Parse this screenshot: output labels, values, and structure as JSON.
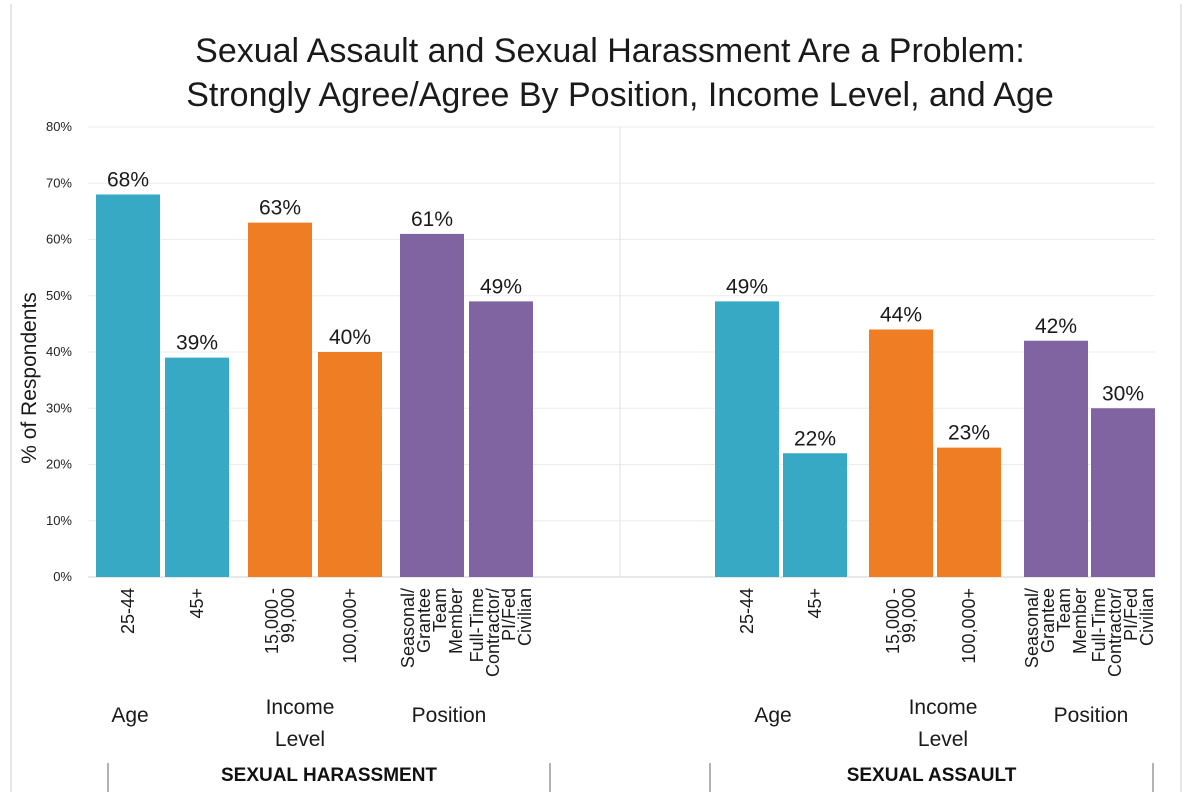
{
  "chart_data": {
    "type": "bar",
    "title": "Sexual Assault and Sexual Harassment Are a Problem:",
    "subtitle": "Strongly Agree/Agree By Position, Income Level, and Age",
    "ylabel": "% of Respondents",
    "ylim": [
      0,
      80
    ],
    "yticks": [
      "0%",
      "10%",
      "20%",
      "30%",
      "40%",
      "50%",
      "60%",
      "70%",
      "80%"
    ],
    "grid": true,
    "colors": {
      "Age": "#38a9c5",
      "Income Level": "#ee7d23",
      "Position": "#8064a2"
    },
    "panels": [
      {
        "name": "SEXUAL HARASSMENT",
        "groups": [
          {
            "name": "Age",
            "bars": [
              {
                "category": "25-44",
                "value": 68,
                "label": "68%"
              },
              {
                "category": "45+",
                "value": 39,
                "label": "39%"
              }
            ]
          },
          {
            "name": "Income Level",
            "bars": [
              {
                "category": "15,000 - 99,000",
                "value": 63,
                "label": "63%"
              },
              {
                "category": "100,000+",
                "value": 40,
                "label": "40%"
              }
            ]
          },
          {
            "name": "Position",
            "bars": [
              {
                "category": "Seasonal/ Grantee Team Member",
                "value": 61,
                "label": "61%"
              },
              {
                "category": "Full-Time Contractor/ PI/Fed Civilian",
                "value": 49,
                "label": "49%"
              }
            ]
          }
        ]
      },
      {
        "name": "SEXUAL ASSAULT",
        "groups": [
          {
            "name": "Age",
            "bars": [
              {
                "category": "25-44",
                "value": 49,
                "label": "49%"
              },
              {
                "category": "45+",
                "value": 22,
                "label": "22%"
              }
            ]
          },
          {
            "name": "Income Level",
            "bars": [
              {
                "category": "15,000 - 99,000",
                "value": 44,
                "label": "44%"
              },
              {
                "category": "100,000+",
                "value": 23,
                "label": "23%"
              }
            ]
          },
          {
            "name": "Position",
            "bars": [
              {
                "category": "Seasonal/ Grantee Team Member",
                "value": 42,
                "label": "42%"
              },
              {
                "category": "Full-Time Contractor/ PI/Fed Civilian",
                "value": 30,
                "label": "30%"
              }
            ]
          }
        ]
      }
    ]
  }
}
